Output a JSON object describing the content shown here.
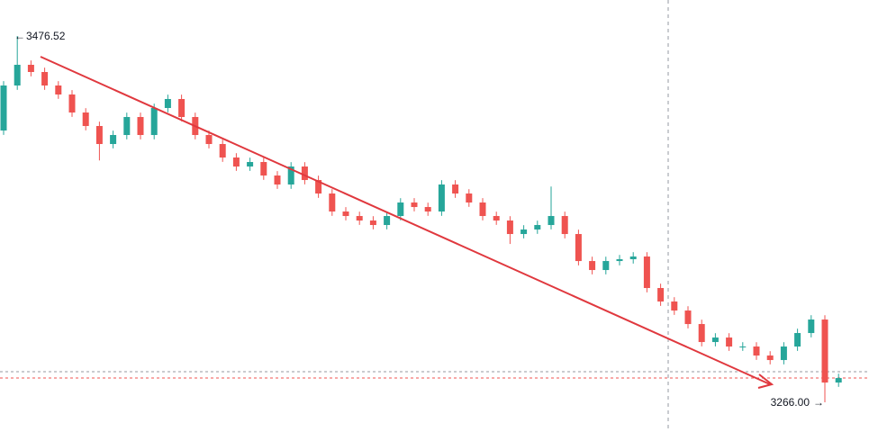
{
  "chart_data": {
    "type": "candlestick",
    "up_color": "#26a69a",
    "down_color": "#ef5350",
    "open": [
      3422.2,
      3448.07,
      3459.97,
      3455.83,
      3448.07,
      3442.9,
      3432.55,
      3424.79,
      3414.44,
      3419.62,
      3429.96,
      3419.62,
      3435.14,
      3440.31,
      3429.96,
      3419.62,
      3414.44,
      3406.68,
      3401.51,
      3404.1,
      3396.34,
      3391.17,
      3401.51,
      3393.75,
      3385.99,
      3375.65,
      3373.06,
      3370.47,
      3367.89,
      3373.06,
      3380.82,
      3378.23,
      3375.65,
      3391.17,
      3385.99,
      3380.82,
      3373.06,
      3370.47,
      3362.71,
      3365.3,
      3367.89,
      3373.06,
      3362.71,
      3347.19,
      3342.02,
      3347.19,
      3348.23,
      3349.78,
      3331.68,
      3323.92,
      3318.74,
      3310.98,
      3300.64,
      3303.22,
      3298.05,
      3298.05,
      3292.88,
      3290.29,
      3298.05,
      3305.81,
      3313.57,
      3277.36
    ],
    "high": [
      3450.57,
      3476.52,
      3462.47,
      3458.33,
      3450.57,
      3445.4,
      3435.05,
      3427.29,
      3422.12,
      3432.46,
      3432.46,
      3437.64,
      3442.81,
      3442.81,
      3432.46,
      3422.12,
      3416.94,
      3409.18,
      3406.6,
      3406.6,
      3398.84,
      3404.01,
      3404.01,
      3396.25,
      3388.49,
      3378.15,
      3375.56,
      3372.97,
      3375.56,
      3383.32,
      3383.32,
      3380.73,
      3393.67,
      3393.67,
      3388.49,
      3383.32,
      3375.56,
      3372.97,
      3367.8,
      3370.39,
      3390.0,
      3375.56,
      3365.21,
      3349.69,
      3349.69,
      3350.73,
      3352.28,
      3352.28,
      3334.18,
      3326.42,
      3321.24,
      3313.48,
      3305.72,
      3305.72,
      3300.55,
      3300.55,
      3295.38,
      3300.55,
      3308.31,
      3316.07,
      3316.07,
      3282.44
    ],
    "low": [
      3419.7,
      3445.57,
      3453.33,
      3445.57,
      3440.4,
      3430.05,
      3422.29,
      3405.0,
      3411.94,
      3417.12,
      3417.12,
      3417.12,
      3432.64,
      3427.46,
      3417.12,
      3411.94,
      3404.18,
      3399.01,
      3399.01,
      3393.84,
      3388.67,
      3388.67,
      3391.25,
      3383.49,
      3373.15,
      3370.56,
      3367.97,
      3365.39,
      3365.39,
      3370.56,
      3375.73,
      3373.15,
      3373.15,
      3383.49,
      3378.32,
      3370.56,
      3367.97,
      3357.0,
      3360.21,
      3362.8,
      3365.39,
      3360.21,
      3344.69,
      3339.52,
      3339.52,
      3344.69,
      3345.73,
      3329.18,
      3321.42,
      3316.24,
      3308.48,
      3298.14,
      3298.14,
      3295.55,
      3295.55,
      3290.38,
      3287.79,
      3287.79,
      3295.55,
      3303.31,
      3266.0,
      3274.86
    ],
    "close": [
      3448.07,
      3459.97,
      3455.83,
      3448.07,
      3442.9,
      3432.55,
      3424.79,
      3414.44,
      3419.62,
      3429.96,
      3419.62,
      3435.14,
      3440.31,
      3429.96,
      3419.62,
      3414.44,
      3406.68,
      3401.51,
      3404.1,
      3396.34,
      3391.17,
      3401.51,
      3393.75,
      3385.99,
      3375.65,
      3373.06,
      3370.47,
      3367.89,
      3373.06,
      3380.82,
      3378.23,
      3375.65,
      3391.17,
      3385.99,
      3380.82,
      3373.06,
      3370.47,
      3362.71,
      3365.3,
      3367.89,
      3373.06,
      3362.71,
      3347.19,
      3342.02,
      3347.19,
      3348.23,
      3349.78,
      3331.68,
      3323.92,
      3318.74,
      3310.98,
      3300.64,
      3303.22,
      3298.05,
      3298.05,
      3292.88,
      3290.29,
      3298.05,
      3305.81,
      3313.57,
      3277.36,
      3279.94
    ],
    "max_label": "3476.52",
    "min_label": "3266.00"
  }
}
